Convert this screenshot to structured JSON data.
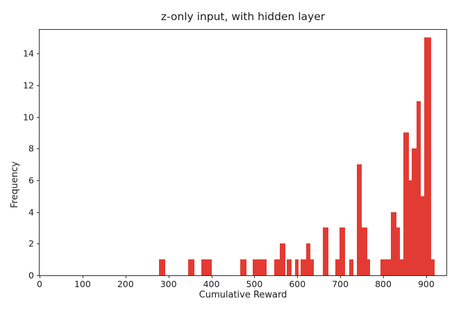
{
  "figure": {
    "background": "#ffffff",
    "spine_color": "#2b2b2b",
    "text_color": "#1a1a1a"
  },
  "chart_data": {
    "type": "bar",
    "subtype": "histogram",
    "title": "z-only input, with hidden layer",
    "xlabel": "Cumulative Reward",
    "ylabel": "Frequency",
    "bar_color": "#e23b33",
    "grid": false,
    "legend": null,
    "xlim": [
      0,
      947
    ],
    "ylim": [
      0,
      15.5
    ],
    "xticks": [
      0,
      100,
      200,
      300,
      400,
      500,
      600,
      700,
      800,
      900
    ],
    "yticks": [
      0,
      2,
      4,
      6,
      8,
      10,
      12,
      14
    ],
    "bars": [
      {
        "x0": 278,
        "x1": 292,
        "freq": 1
      },
      {
        "x0": 346,
        "x1": 360,
        "freq": 1
      },
      {
        "x0": 377,
        "x1": 401,
        "freq": 1
      },
      {
        "x0": 467,
        "x1": 481,
        "freq": 1
      },
      {
        "x0": 496,
        "x1": 528,
        "freq": 1
      },
      {
        "x0": 546,
        "x1": 559,
        "freq": 1
      },
      {
        "x0": 559,
        "x1": 572,
        "freq": 2
      },
      {
        "x0": 576,
        "x1": 587,
        "freq": 1
      },
      {
        "x0": 594,
        "x1": 603,
        "freq": 1
      },
      {
        "x0": 608,
        "x1": 620,
        "freq": 1
      },
      {
        "x0": 620,
        "x1": 630,
        "freq": 2
      },
      {
        "x0": 630,
        "x1": 638,
        "freq": 1
      },
      {
        "x0": 659,
        "x1": 672,
        "freq": 3
      },
      {
        "x0": 688,
        "x1": 698,
        "freq": 1
      },
      {
        "x0": 698,
        "x1": 711,
        "freq": 3
      },
      {
        "x0": 720,
        "x1": 731,
        "freq": 1
      },
      {
        "x0": 738,
        "x1": 750,
        "freq": 7
      },
      {
        "x0": 750,
        "x1": 762,
        "freq": 3
      },
      {
        "x0": 762,
        "x1": 770,
        "freq": 1
      },
      {
        "x0": 793,
        "x1": 818,
        "freq": 1
      },
      {
        "x0": 818,
        "x1": 830,
        "freq": 4
      },
      {
        "x0": 830,
        "x1": 838,
        "freq": 3
      },
      {
        "x0": 838,
        "x1": 847,
        "freq": 1
      },
      {
        "x0": 847,
        "x1": 860,
        "freq": 9
      },
      {
        "x0": 860,
        "x1": 867,
        "freq": 6
      },
      {
        "x0": 867,
        "x1": 877,
        "freq": 8
      },
      {
        "x0": 877,
        "x1": 888,
        "freq": 11
      },
      {
        "x0": 888,
        "x1": 896,
        "freq": 5
      },
      {
        "x0": 896,
        "x1": 912,
        "freq": 15
      },
      {
        "x0": 912,
        "x1": 919,
        "freq": 1
      }
    ]
  }
}
